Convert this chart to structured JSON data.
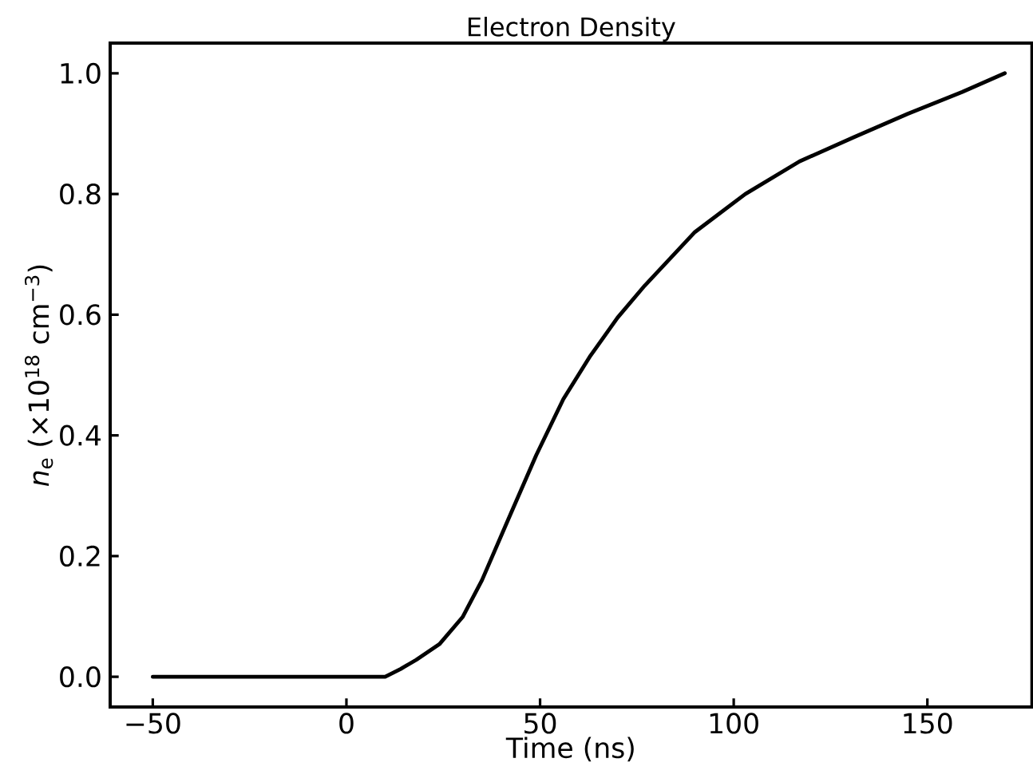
{
  "chart_data": {
    "type": "line",
    "title": "Electron Density",
    "xlabel": "Time (ns)",
    "ylabel": "*n*$_{e}$ (×10$^{18}$ cm$^{−3}$)",
    "x": [
      -50,
      -30,
      -10,
      0,
      10,
      14,
      18,
      24,
      30,
      35,
      42,
      49,
      56,
      63,
      70,
      77,
      90,
      103,
      117,
      131,
      145,
      159,
      170
    ],
    "series": [
      {
        "color": "#000000",
        "values": [
          0,
          0,
          0,
          0,
          0,
          0.013,
          0.028,
          0.054,
          0.099,
          0.16,
          0.264,
          0.367,
          0.46,
          0.532,
          0.595,
          0.648,
          0.737,
          0.8,
          0.854,
          0.894,
          0.933,
          0.969,
          1.0
        ]
      }
    ],
    "xlim": [
      -61,
      177
    ],
    "ylim": [
      -0.05,
      1.05
    ],
    "xticks": [
      {
        "value": -50,
        "label": "−50"
      },
      0,
      50,
      100,
      150
    ],
    "yticks": [
      {
        "value": 0,
        "label": "0.0"
      },
      {
        "value": 0.2,
        "label": "0.2"
      },
      {
        "value": 0.4,
        "label": "0.4"
      },
      {
        "value": 0.6,
        "label": "0.6"
      },
      {
        "value": 0.8,
        "label": "0.8"
      },
      {
        "value": 1.0,
        "label": "1.0"
      }
    ],
    "grid": false,
    "marker": "none",
    "line_style": "solid"
  }
}
